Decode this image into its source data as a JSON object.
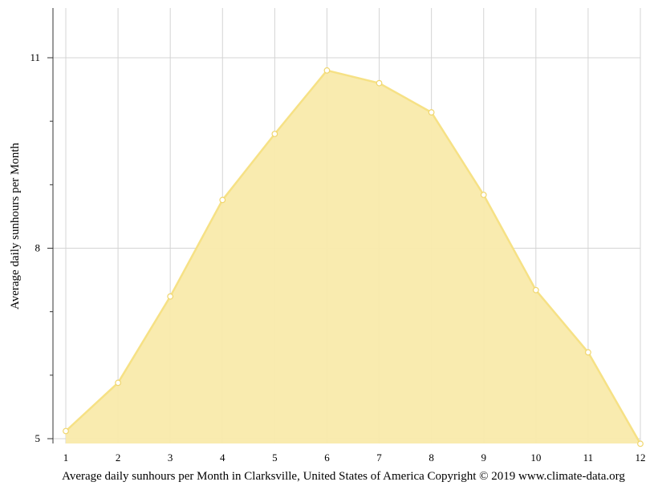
{
  "chart_data": {
    "type": "area",
    "xlabel": "Average daily sunhours per Month in Clarksville, United States of America Copyright © 2019 www.climate-data.org",
    "ylabel": "Average daily sunhours per Month",
    "x": [
      1,
      2,
      3,
      4,
      5,
      6,
      7,
      8,
      9,
      10,
      11,
      12
    ],
    "x_ticks": [
      "1",
      "2",
      "3",
      "4",
      "5",
      "6",
      "7",
      "8",
      "9",
      "10",
      "11",
      "12"
    ],
    "y_ticks": [
      "5",
      "8",
      "11"
    ],
    "y_minor_ticks": [
      6,
      7,
      9,
      10
    ],
    "xlim": [
      0.75,
      12
    ],
    "ylim": [
      5,
      11.78
    ],
    "series": [
      {
        "values": [
          5.12,
          5.88,
          7.24,
          8.76,
          9.8,
          10.8,
          10.6,
          10.14,
          8.84,
          7.34,
          6.36,
          4.92
        ]
      }
    ],
    "grid": true,
    "colors": {
      "fill": "#f9eaab",
      "line": "#f6e185",
      "marker_stroke": "#f0d66e",
      "grid": "#d4d4d4",
      "axis": "#333333"
    }
  }
}
